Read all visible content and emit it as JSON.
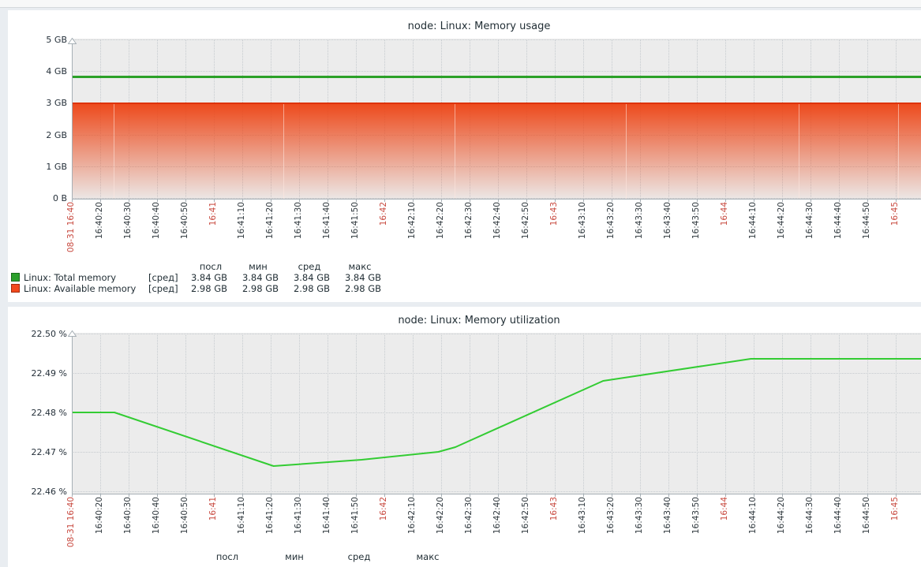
{
  "ui": {
    "topbar_background": "#f7f8f8",
    "topbar_border": "#d4d9dc",
    "page_background": "#e9edf1",
    "panel_background": "#ffffff",
    "plot_background": "#ececec",
    "grid_color": "#c6cbcf",
    "axis_color": "#a6afb5",
    "tick_label_color": "#2e373d",
    "tick_label_red_color": "#c8493f",
    "title_color": "#1f2c33"
  },
  "chart_data": [
    {
      "type": "area",
      "title": "node: Linux: Memory usage",
      "ylim_gb": [
        0,
        5
      ],
      "y_ticks": [
        "5 GB",
        "4 GB",
        "3 GB",
        "2 GB",
        "1 GB",
        "0 B"
      ],
      "x_ticks": [
        "08-31 16:40",
        "16:40:20",
        "16:40:30",
        "16:40:40",
        "16:40:50",
        "16:41",
        "16:41:10",
        "16:41:20",
        "16:41:30",
        "16:41:40",
        "16:41:50",
        "16:42",
        "16:42:10",
        "16:42:20",
        "16:42:30",
        "16:42:40",
        "16:42:50",
        "16:43",
        "16:43:10",
        "16:43:20",
        "16:43:30",
        "16:43:40",
        "16:43:50",
        "16:44",
        "16:44:10",
        "16:44:20",
        "16:44:30",
        "16:44:40",
        "16:44:50",
        "16:45"
      ],
      "x_red_tick_indices": [
        0,
        5,
        11,
        17,
        23,
        29
      ],
      "series": [
        {
          "name": "Linux: Total memory",
          "style": "line",
          "color": "#2ba128",
          "constant_value_gb": 3.84
        },
        {
          "name": "Linux: Available memory",
          "style": "gradient-area",
          "color": "#ed4212",
          "top_line_color": "#de3306",
          "constant_value_gb": 2.98
        }
      ],
      "legend": {
        "headers": [
          "посл",
          "мин",
          "сред",
          "макс"
        ],
        "rows": [
          {
            "swatch_color": "#2ca02c",
            "swatch_border": "#1a6b1a",
            "label": "Linux: Total memory",
            "aggregation": "[сред]",
            "values": [
              "3.84 GB",
              "3.84 GB",
              "3.84 GB",
              "3.84 GB"
            ]
          },
          {
            "swatch_color": "#f2491c",
            "swatch_border": "#a02c10",
            "label": "Linux: Available memory",
            "aggregation": "[сред]",
            "values": [
              "2.98 GB",
              "2.98 GB",
              "2.98 GB",
              "2.98 GB"
            ]
          }
        ]
      }
    },
    {
      "type": "line",
      "title": "node: Linux: Memory utilization",
      "ylim_percent": [
        22.46,
        22.5
      ],
      "y_ticks": [
        "22.50 %",
        "22.49 %",
        "22.48 %",
        "22.47 %",
        "22.46 %"
      ],
      "x_ticks": [
        "08-31 16:40",
        "16:40:20",
        "16:40:30",
        "16:40:40",
        "16:40:50",
        "16:41",
        "16:41:10",
        "16:41:20",
        "16:41:30",
        "16:41:40",
        "16:41:50",
        "16:42",
        "16:42:10",
        "16:42:20",
        "16:42:30",
        "16:42:40",
        "16:42:50",
        "16:43",
        "16:43:10",
        "16:43:20",
        "16:43:30",
        "16:43:40",
        "16:43:50",
        "16:44",
        "16:44:10",
        "16:44:20",
        "16:44:30",
        "16:44:40",
        "16:44:50",
        "16:45"
      ],
      "x_red_tick_indices": [
        0,
        5,
        11,
        17,
        23,
        29
      ],
      "series": [
        {
          "name": "Linux: Memory utilization",
          "style": "line",
          "color": "#33cc33",
          "points": [
            [
              "16:40:10",
              22.48
            ],
            [
              "16:40:25",
              22.48
            ],
            [
              "16:41:21",
              22.4664
            ],
            [
              "16:41:52",
              22.468
            ],
            [
              "16:42:19",
              22.47
            ],
            [
              "16:42:25",
              22.4712
            ],
            [
              "16:43:17",
              22.488
            ],
            [
              "16:44:09",
              22.4936
            ],
            [
              "16:45:14",
              22.4936
            ]
          ]
        }
      ],
      "legend": {
        "headers": [
          "посл",
          "мин",
          "сред",
          "макс"
        ]
      }
    }
  ]
}
